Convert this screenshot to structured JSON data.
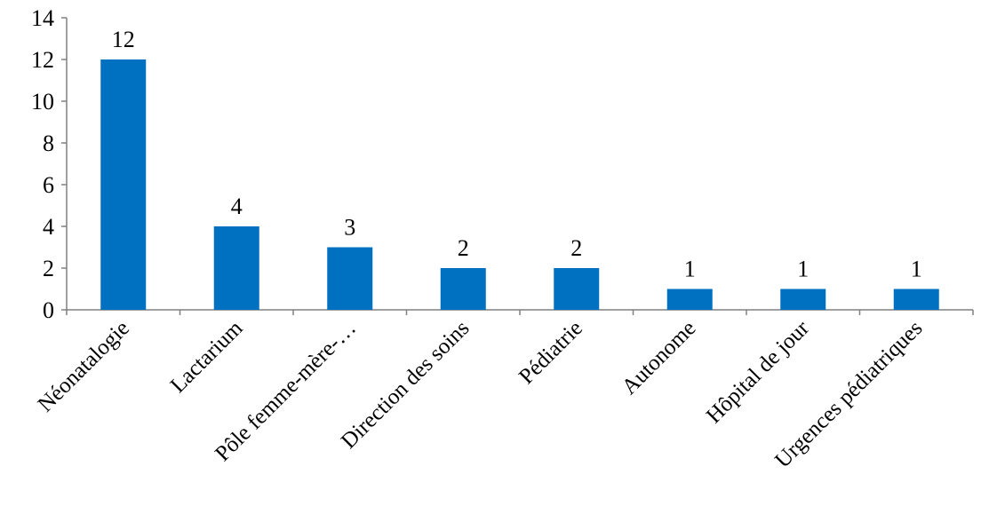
{
  "chart_data": {
    "type": "bar",
    "categories": [
      "Néonatalogie",
      "Lactarium",
      "Pôle femme-mère-…",
      "Direction des soins",
      "Pédiatrie",
      "Autonome",
      "Hôpital de jour",
      "Urgences pédiatriques"
    ],
    "values": [
      12,
      4,
      3,
      2,
      2,
      1,
      1,
      1
    ],
    "title": "",
    "xlabel": "",
    "ylabel": "",
    "ylim": [
      0,
      14
    ],
    "yticks": [
      0,
      2,
      4,
      6,
      8,
      10,
      12,
      14
    ],
    "grid": false,
    "legend": "none",
    "bar_color": "#0070C0",
    "data_labels": true
  }
}
